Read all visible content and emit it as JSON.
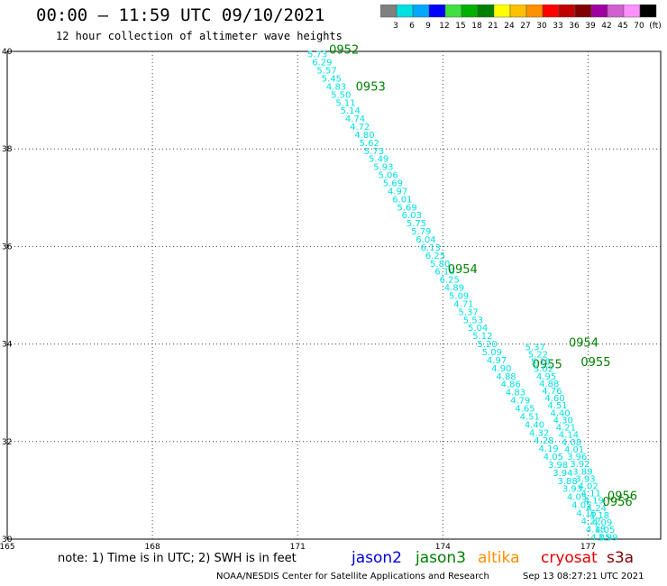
{
  "title": "00:00 – 11:59 UTC 09/10/2021",
  "subtitle": "12 hour collection of altimeter wave heights",
  "colorbar": {
    "ticks": [
      "3",
      "6",
      "9",
      "12",
      "15",
      "18",
      "21",
      "24",
      "27",
      "30",
      "33",
      "36",
      "39",
      "42",
      "45",
      "70",
      "(ft)"
    ],
    "colors": [
      "#808080",
      "#00e0e0",
      "#00a8ff",
      "#0000ff",
      "#40e040",
      "#00b000",
      "#008000",
      "#ffff00",
      "#ffc000",
      "#ff9000",
      "#ff0000",
      "#c00000",
      "#800000",
      "#a000a0",
      "#d060d0",
      "#ff90ff",
      "#000000"
    ]
  },
  "axes": {
    "lon_ticks": [
      "165",
      "168",
      "171",
      "174",
      "177"
    ],
    "lat_ticks": [
      "30",
      "32",
      "34",
      "36",
      "38",
      "40"
    ],
    "lon_range": [
      165,
      178.5
    ],
    "lat_range": [
      30,
      40
    ]
  },
  "tracks": {
    "swh_color": "#00e0e0",
    "time_color": "#008000",
    "track1": {
      "start": [
        171.2,
        39.95
      ],
      "end": [
        177.05,
        30.05
      ],
      "swh": [
        "5.73",
        "6.29",
        "5.57",
        "5.45",
        "4.83",
        "5.50",
        "5.11",
        "5.14",
        "4.74",
        "4.72",
        "4.80",
        "5.62",
        "5.73",
        "5.49",
        "5.93",
        "5.06",
        "5.69",
        "4.97",
        "6.01",
        "5.69",
        "6.03",
        "5.75",
        "5.79",
        "6.04",
        "6.13",
        "6.25",
        "5.80",
        "6.10",
        "6.25",
        "4.89",
        "5.09",
        "4.71",
        "5.37",
        "5.53",
        "5.04",
        "5.12",
        "5.20",
        "5.09",
        "4.97",
        "4.90",
        "4.88",
        "4.86",
        "4.83",
        "4.79",
        "4.65",
        "4.51",
        "4.40",
        "4.32",
        "4.28",
        "4.19",
        "4.05",
        "3.98",
        "3.94",
        "3.88",
        "3.93",
        "4.05",
        "4.05",
        "4.16",
        "4.22",
        "4.18",
        "4.05"
      ],
      "times": [
        {
          "label": "0952",
          "lon": 171.65,
          "lat": 39.95
        },
        {
          "label": "0953",
          "lon": 172.2,
          "lat": 39.2
        },
        {
          "label": "0954",
          "lon": 174.1,
          "lat": 35.45
        },
        {
          "label": "0955",
          "lon": 175.85,
          "lat": 33.5
        },
        {
          "label": "0956",
          "lon": 177.4,
          "lat": 30.8
        }
      ]
    },
    "track2": {
      "start": [
        175.7,
        33.95
      ],
      "end": [
        177.2,
        30.05
      ],
      "swh": [
        "5.37",
        "5.22",
        "5.10",
        "5.02",
        "4.95",
        "4.88",
        "4.76",
        "4.60",
        "4.51",
        "4.40",
        "4.30",
        "4.21",
        "4.14",
        "4.08",
        "4.01",
        "3.96",
        "3.92",
        "3.89",
        "3.93",
        "4.02",
        "4.11",
        "4.19",
        "4.24",
        "4.18",
        "4.09",
        "4.05",
        "3.99"
      ],
      "times": [
        {
          "label": "0954",
          "lon": 176.6,
          "lat": 33.95
        },
        {
          "label": "0955",
          "lon": 176.85,
          "lat": 33.55
        },
        {
          "label": "0956",
          "lon": 177.3,
          "lat": 30.68
        }
      ]
    }
  },
  "note": "note: 1) Time is in UTC; 2) SWH is in feet",
  "satellites": [
    {
      "name": "jason2",
      "color": "#0000e0"
    },
    {
      "name": "jason3",
      "color": "#008000"
    },
    {
      "name": "altika",
      "color": "#ff9000"
    },
    {
      "name": "cryosat",
      "color": "#e00000"
    },
    {
      "name": "s3a",
      "color": "#800000"
    }
  ],
  "footer": {
    "center": "NOAA/NESDIS Center for Satellite Applications and Research",
    "timestamp": "Sep 13 08:27:21 UTC 2021"
  }
}
